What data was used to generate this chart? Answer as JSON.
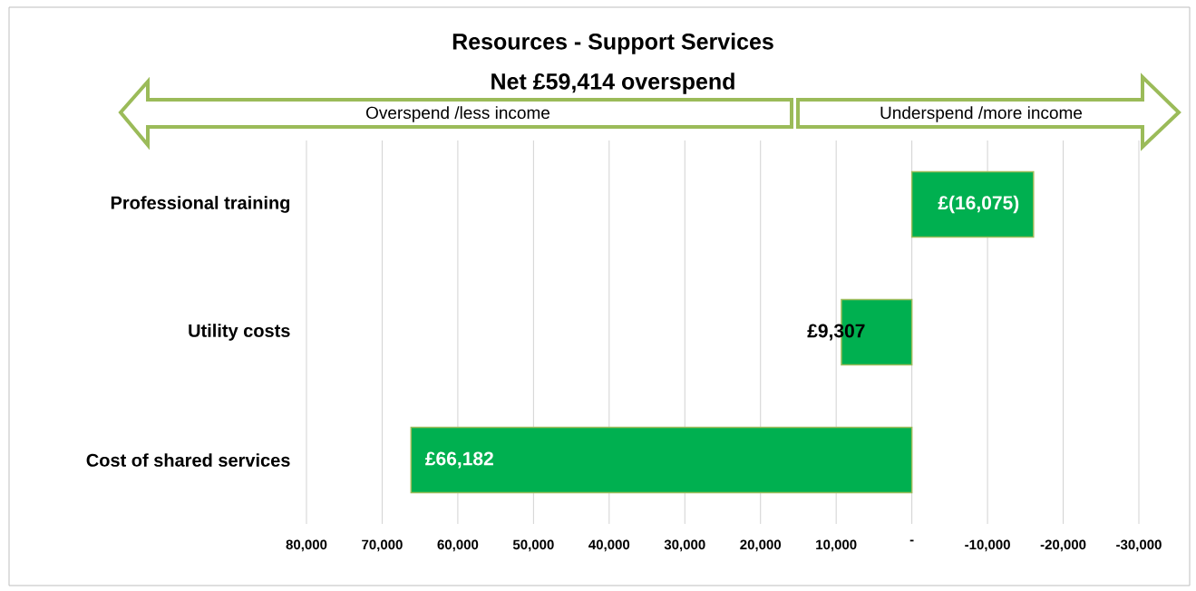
{
  "chart_data": {
    "type": "bar",
    "orientation": "horizontal",
    "title": "Resources - Support Services",
    "subtitle": "Net £59,414 overspend",
    "categories": [
      "Professional training",
      "Utility costs",
      "Cost of shared services"
    ],
    "values": [
      -16075,
      9307,
      66182
    ],
    "value_labels": [
      "£(16,075)",
      "£9,307",
      "£66,182"
    ],
    "color": "#00b050",
    "xlim": [
      80000,
      -30000
    ],
    "xticks": [
      {
        "value": 80000,
        "label": "80,000"
      },
      {
        "value": 70000,
        "label": "70,000"
      },
      {
        "value": 60000,
        "label": "60,000"
      },
      {
        "value": 50000,
        "label": "50,000"
      },
      {
        "value": 40000,
        "label": "40,000"
      },
      {
        "value": 30000,
        "label": "30,000"
      },
      {
        "value": 20000,
        "label": "20,000"
      },
      {
        "value": 10000,
        "label": "10,000"
      },
      {
        "value": 0,
        "label": "-"
      },
      {
        "value": -10000,
        "label": "-10,000"
      },
      {
        "value": -20000,
        "label": "-20,000"
      },
      {
        "value": -30000,
        "label": "-30,000"
      }
    ],
    "grid": "x",
    "annotations": [
      "Overspend /less income",
      "Underspend /more income"
    ]
  }
}
